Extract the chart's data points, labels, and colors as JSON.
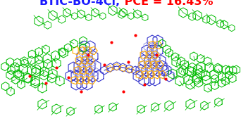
{
  "title_part1": "BTIC-BO-4Cl,",
  "title_part2": " PCE = 16.43%",
  "title_part1_color": "#1a1aff",
  "title_part2_color": "#ff0000",
  "title_fontsize": 11.5,
  "title_fontweight": "bold",
  "background_color": "#ffffff",
  "fig_width": 3.42,
  "fig_height": 1.89,
  "dpi": 100,
  "green": "#00bb00",
  "blue": "#3333cc",
  "orange": "#ffaa00",
  "red": "#ff0000",
  "lblue": "#8888dd",
  "lw": 0.8
}
